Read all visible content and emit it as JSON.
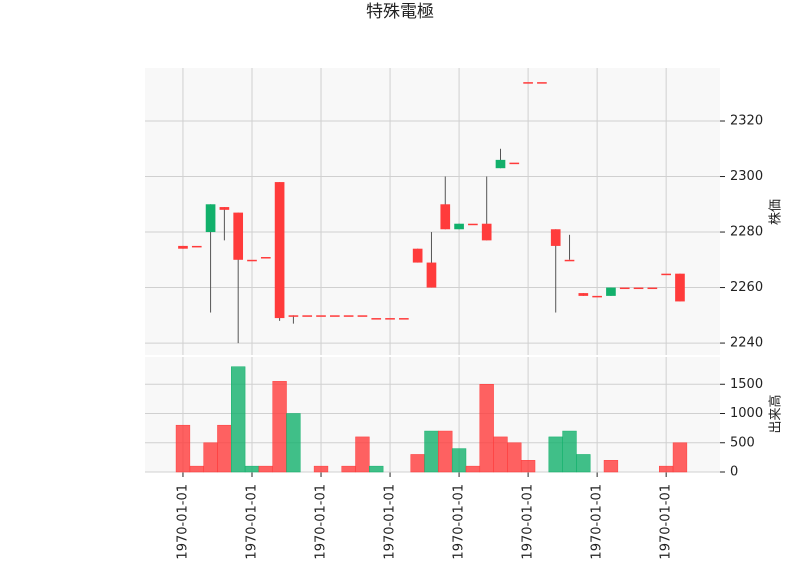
{
  "chart_data": {
    "type": "candlestick",
    "title": "特殊電極",
    "ylabel": "株価",
    "volume_label": "出来高",
    "x": [
      0,
      1,
      2,
      3,
      4,
      5,
      6,
      7,
      8,
      9,
      10,
      11,
      12,
      13,
      14,
      15,
      16,
      17,
      18,
      19,
      20,
      21,
      22,
      23,
      24,
      25,
      26,
      27,
      28,
      29,
      30,
      31,
      32,
      33,
      34,
      35,
      36
    ],
    "open": [
      2274,
      2275,
      2290,
      2288,
      2270,
      2270,
      2271,
      2249,
      2250,
      2250,
      2250,
      2250,
      2250,
      2250,
      2249,
      2249,
      2249,
      2269,
      2260,
      2281,
      2283,
      2283,
      2277,
      2306,
      2305,
      2334,
      2334,
      2275,
      2270,
      2257,
      2257,
      2260,
      2260,
      2260,
      2260,
      2265,
      2255
    ],
    "high": [
      2275,
      2275,
      2290,
      2289,
      2287,
      2270,
      2271,
      2298,
      2250,
      2250,
      2250,
      2250,
      2250,
      2250,
      2249,
      2249,
      2249,
      2274,
      2280,
      2300,
      2283,
      2283,
      2300,
      2310,
      2305,
      2334,
      2334,
      2281,
      2279,
      2258,
      2257,
      2260,
      2260,
      2260,
      2260,
      2265,
      2265
    ],
    "low": [
      2274,
      2275,
      2251,
      2277,
      2240,
      2270,
      2271,
      2248,
      2247,
      2250,
      2250,
      2250,
      2250,
      2250,
      2249,
      2249,
      2249,
      2269,
      2260,
      2281,
      2281,
      2283,
      2277,
      2303,
      2305,
      2334,
      2334,
      2251,
      2270,
      2257,
      2257,
      2257,
      2260,
      2260,
      2260,
      2265,
      2255
    ],
    "close": [
      2275,
      2275,
      2280,
      2289,
      2287,
      2270,
      2271,
      2298,
      2250,
      2250,
      2250,
      2250,
      2250,
      2250,
      2249,
      2249,
      2249,
      2274,
      2269,
      2290,
      2281,
      2283,
      2283,
      2303,
      2305,
      2334,
      2334,
      2281,
      2270,
      2258,
      2257,
      2257,
      2260,
      2260,
      2260,
      2265,
      2265
    ],
    "volume": [
      800,
      100,
      500,
      800,
      1800,
      100,
      100,
      1550,
      1000,
      0,
      100,
      0,
      100,
      600,
      100,
      0,
      0,
      300,
      700,
      700,
      400,
      100,
      1500,
      600,
      500,
      200,
      0,
      600,
      700,
      300,
      0,
      200,
      0,
      0,
      0,
      100,
      500
    ],
    "up_color": "#ff3b3b",
    "down_color": "#12b06b",
    "wick_color": "#555555",
    "xlim": [
      -2.75,
      38.9
    ],
    "xticks": [
      {
        "value": 0,
        "label": "1970-01-01"
      },
      {
        "value": 5,
        "label": "1970-01-01"
      },
      {
        "value": 10,
        "label": "1970-01-01"
      },
      {
        "value": 15,
        "label": "1970-01-01"
      },
      {
        "value": 20,
        "label": "1970-01-01"
      },
      {
        "value": 25,
        "label": "1970-01-01"
      },
      {
        "value": 30,
        "label": "1970-01-01"
      },
      {
        "value": 35,
        "label": "1970-01-01"
      }
    ],
    "ylim": [
      2235.7,
      2339.1
    ],
    "yticks": [
      2240,
      2260,
      2280,
      2300,
      2320
    ],
    "volume_ylim": [
      0,
      1966
    ],
    "volume_yticks": [
      0,
      500,
      1000,
      1500
    ],
    "grid": true
  }
}
